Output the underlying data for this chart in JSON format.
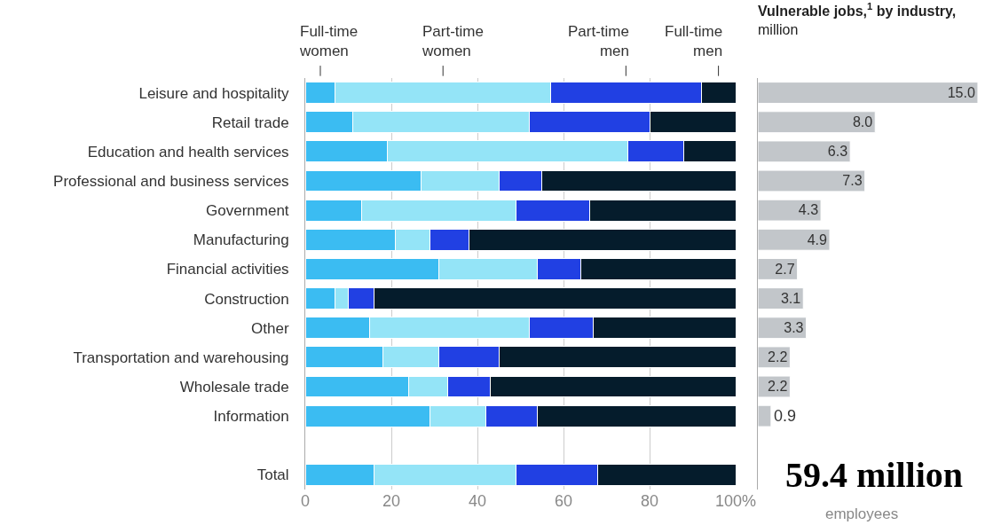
{
  "chart_data": [
    {
      "type": "bar",
      "orientation": "horizontal",
      "stacked": true,
      "categories": [
        "Leisure and hospitality",
        "Retail trade",
        "Education and health services",
        "Professional and business services",
        "Government",
        "Manufacturing",
        "Financial activities",
        "Construction",
        "Other",
        "Transportation and warehousing",
        "Wholesale trade",
        "Information",
        null,
        "Total"
      ],
      "series": [
        {
          "name": "Full-time women",
          "color": "#3bbcf2",
          "values": [
            7,
            11,
            19,
            27,
            13,
            21,
            31,
            7,
            15,
            18,
            24,
            29,
            null,
            16
          ]
        },
        {
          "name": "Part-time women",
          "color": "#94e4f7",
          "values": [
            50,
            41,
            56,
            18,
            36,
            8,
            23,
            3,
            37,
            13,
            9,
            13,
            null,
            33
          ]
        },
        {
          "name": "Part-time men",
          "color": "#2140e3",
          "values": [
            35,
            28,
            13,
            10,
            17,
            9,
            10,
            6,
            15,
            14,
            10,
            12,
            null,
            19
          ]
        },
        {
          "name": "Full-time men",
          "color": "#051c2c",
          "values": [
            8,
            20,
            12,
            45,
            34,
            62,
            36,
            84,
            33,
            55,
            57,
            46,
            null,
            32
          ]
        }
      ],
      "xlim": [
        0,
        100
      ],
      "xticks": [
        0,
        20,
        40,
        60,
        80,
        {
          "value": 100,
          "label": "100%"
        }
      ],
      "grid": "x"
    },
    {
      "type": "bar",
      "orientation": "horizontal",
      "title": "Vulnerable jobs,$^{1}$ by industry,",
      "subtitle": "million",
      "categories": [
        null,
        null,
        null,
        null,
        null,
        null,
        null,
        null,
        null,
        null,
        null,
        null,
        null,
        null
      ],
      "values": [
        15.0,
        8.0,
        6.3,
        7.3,
        4.3,
        4.9,
        2.7,
        3.1,
        3.3,
        2.2,
        2.2,
        0.9,
        null,
        null
      ],
      "value_labels": [
        "15.0",
        "8.0",
        "6.3",
        "7.3",
        "4.3",
        "4.9",
        "2.7",
        "3.1",
        "3.3",
        "2.2",
        "2.2",
        "0.9",
        null,
        null
      ],
      "color": "#c2c6ca",
      "annotations": [
        "59.4 million",
        "employees"
      ]
    }
  ]
}
